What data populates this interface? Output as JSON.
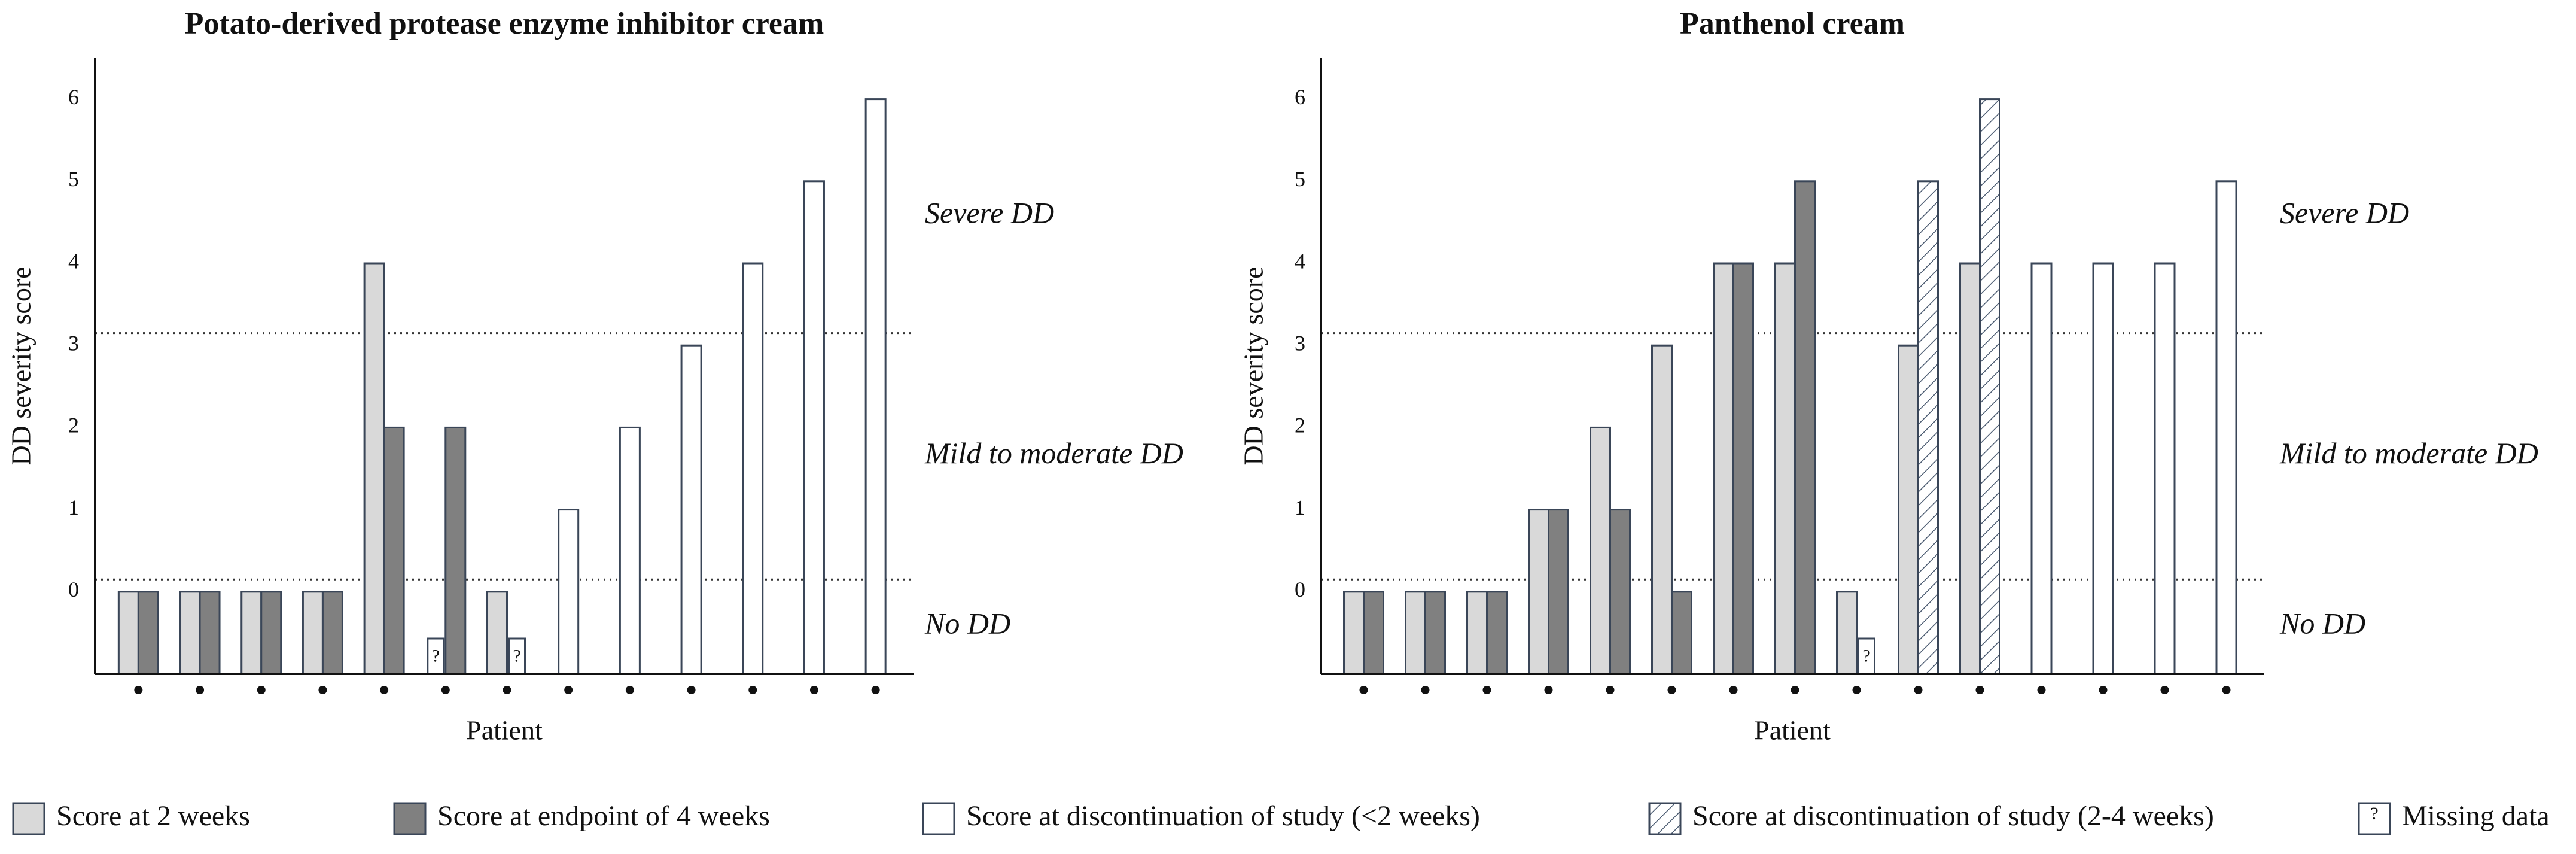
{
  "legend": [
    {
      "name": "Score at 2 weeks",
      "color": "#d9d9d9"
    },
    {
      "name": "Score at endpoint of 4 weeks",
      "color": "#808080"
    },
    {
      "name": "Score at discontinuation of study (<2 weeks)",
      "color": "#ffffff"
    },
    {
      "name": "Score at discontinuation of study (2-4 weeks)",
      "color": "#ffffff",
      "hatch": true
    },
    {
      "name": "Missing data",
      "color": "#ffffff",
      "symbol": "?"
    }
  ],
  "chart_data": [
    {
      "type": "bar",
      "title": "Potato-derived protease enzyme inhibitor cream",
      "y_label": "DD severity score",
      "x_label": "Patient",
      "categories": [
        null,
        null,
        null,
        null,
        null,
        null,
        null,
        null,
        null,
        null,
        null,
        null,
        null
      ],
      "ylim": [
        -1,
        6.5
      ],
      "yticks": [
        0,
        1,
        2,
        3,
        4,
        5,
        6
      ],
      "thresholds": [
        0.15,
        3.15
      ],
      "annotations": [
        "Severe DD",
        "Mild to moderate  DD",
        "No DD"
      ],
      "series": [
        {
          "name": "Score at 2 weeks",
          "values": [
            0,
            0,
            0,
            0,
            4,
            null,
            0,
            null,
            null,
            null,
            null,
            null,
            null
          ],
          "value_labels": [
            null,
            null,
            null,
            null,
            null,
            "?",
            null,
            null,
            null,
            null,
            null,
            null,
            null
          ]
        },
        {
          "name": "Score at endpoint of 4 weeks",
          "values": [
            0,
            0,
            0,
            0,
            2,
            2,
            null,
            null,
            null,
            null,
            null,
            null,
            null
          ],
          "value_labels": [
            null,
            null,
            null,
            null,
            null,
            null,
            "?",
            null,
            null,
            null,
            null,
            null,
            null
          ]
        },
        {
          "name": "Score at discontinuation of study (<2 weeks)",
          "values": [
            null,
            null,
            null,
            null,
            null,
            null,
            null,
            1,
            2,
            3,
            4,
            5,
            6
          ]
        }
      ]
    },
    {
      "type": "bar",
      "title": "Panthenol cream",
      "y_label": "DD severity score",
      "x_label": "Patient",
      "categories": [
        null,
        null,
        null,
        null,
        null,
        null,
        null,
        null,
        null,
        null,
        null,
        null,
        null,
        null,
        null
      ],
      "ylim": [
        -1,
        6.5
      ],
      "yticks": [
        0,
        1,
        2,
        3,
        4,
        5,
        6
      ],
      "thresholds": [
        0.15,
        3.15
      ],
      "annotations": [
        "Severe DD",
        "Mild to moderate DD",
        "No DD"
      ],
      "series": [
        {
          "name": "Score at 2 weeks",
          "values": [
            0,
            0,
            0,
            1,
            2,
            3,
            4,
            4,
            0,
            3,
            4,
            null,
            null,
            null,
            null
          ]
        },
        {
          "name": "Score at endpoint of 4 weeks",
          "values": [
            0,
            0,
            0,
            1,
            1,
            0,
            4,
            5,
            null,
            null,
            null,
            null,
            null,
            null,
            null
          ],
          "value_labels": [
            null,
            null,
            null,
            null,
            null,
            null,
            null,
            null,
            "?",
            null,
            null,
            null,
            null,
            null,
            null
          ]
        },
        {
          "name": "Score at discontinuation of study (<2 weeks)",
          "values": [
            null,
            null,
            null,
            null,
            null,
            null,
            null,
            null,
            null,
            null,
            null,
            4,
            4,
            4,
            5
          ]
        },
        {
          "name": "Score at discontinuation of study (2-4 weeks)",
          "values": [
            null,
            null,
            null,
            null,
            null,
            null,
            null,
            null,
            null,
            5,
            6,
            null,
            null,
            null,
            null
          ]
        }
      ]
    }
  ]
}
